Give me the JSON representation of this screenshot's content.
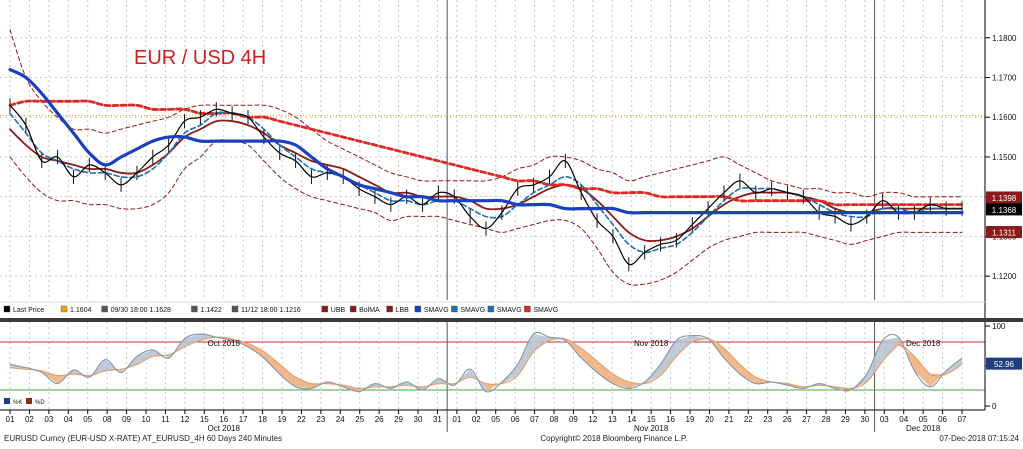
{
  "chart_data": {
    "type": "line",
    "title": "EUR / USD 4H",
    "instrument": "EURUSD Curncy (EUR-USD X-RATE) AT_EURUSD_4H 60 Days 240 Minutes",
    "copyright": "Copyright© 2018 Bloomberg Finance L.P.",
    "timestamp": "07-Dec-2018 07:15:24",
    "price_panel": {
      "ylim": [
        1.115,
        1.188
      ],
      "y_ticks": [
        "1.1200",
        "1.1300",
        "1.1400",
        "1.1500",
        "1.1600",
        "1.1700",
        "1.1800"
      ],
      "horizontal_line": 1.1604,
      "price_tags": [
        {
          "label": "1.1398",
          "value": 1.1398,
          "color": "#8b1a1a"
        },
        {
          "label": "1.1368",
          "value": 1.1368,
          "color": "#000000"
        },
        {
          "label": "1.1311",
          "value": 1.1311,
          "color": "#8b1a1a"
        }
      ],
      "series": [
        {
          "name": "Last Price",
          "color": "#000000",
          "values": [
            1.163,
            1.158,
            1.149,
            1.15,
            1.145,
            1.148,
            1.146,
            1.143,
            1.146,
            1.15,
            1.153,
            1.159,
            1.16,
            1.162,
            1.161,
            1.16,
            1.155,
            1.151,
            1.149,
            1.145,
            1.146,
            1.145,
            1.142,
            1.14,
            1.138,
            1.14,
            1.138,
            1.141,
            1.14,
            1.135,
            1.132,
            1.136,
            1.142,
            1.143,
            1.145,
            1.149,
            1.141,
            1.134,
            1.13,
            1.123,
            1.126,
            1.128,
            1.129,
            1.133,
            1.137,
            1.141,
            1.144,
            1.141,
            1.142,
            1.141,
            1.14,
            1.136,
            1.135,
            1.133,
            1.135,
            1.139,
            1.136,
            1.136,
            1.138,
            1.137,
            1.137
          ]
        },
        {
          "name": "BolMA",
          "color": "#8b1a1a",
          "values": [
            1.157,
            1.153,
            1.15,
            1.149,
            1.148,
            1.147,
            1.147,
            1.146,
            1.146,
            1.148,
            1.151,
            1.155,
            1.157,
            1.159,
            1.159,
            1.158,
            1.156,
            1.153,
            1.151,
            1.149,
            1.148,
            1.147,
            1.145,
            1.143,
            1.141,
            1.141,
            1.14,
            1.14,
            1.14,
            1.139,
            1.137,
            1.137,
            1.138,
            1.14,
            1.142,
            1.143,
            1.142,
            1.139,
            1.135,
            1.131,
            1.129,
            1.129,
            1.13,
            1.132,
            1.135,
            1.138,
            1.14,
            1.141,
            1.141,
            1.141,
            1.14,
            1.139,
            1.137,
            1.136,
            1.136,
            1.137,
            1.137,
            1.137,
            1.137,
            1.137,
            1.137
          ]
        },
        {
          "name": "UBB",
          "color": "#8b1a1a",
          "values": [
            1.182,
            1.17,
            1.164,
            1.16,
            1.157,
            1.157,
            1.156,
            1.157,
            1.158,
            1.159,
            1.16,
            1.162,
            1.163,
            1.163,
            1.163,
            1.163,
            1.163,
            1.162,
            1.16,
            1.157,
            1.154,
            1.152,
            1.15,
            1.148,
            1.146,
            1.145,
            1.144,
            1.144,
            1.144,
            1.144,
            1.144,
            1.145,
            1.147,
            1.148,
            1.15,
            1.15,
            1.149,
            1.147,
            1.146,
            1.144,
            1.145,
            1.146,
            1.147,
            1.148,
            1.149,
            1.15,
            1.148,
            1.146,
            1.144,
            1.143,
            1.142,
            1.142,
            1.141,
            1.141,
            1.14,
            1.141,
            1.141,
            1.14,
            1.14,
            1.14,
            1.14
          ]
        },
        {
          "name": "LBB",
          "color": "#8b1a1a",
          "values": [
            1.15,
            1.145,
            1.141,
            1.139,
            1.139,
            1.138,
            1.138,
            1.137,
            1.137,
            1.138,
            1.141,
            1.147,
            1.15,
            1.154,
            1.154,
            1.153,
            1.149,
            1.145,
            1.142,
            1.14,
            1.139,
            1.138,
            1.137,
            1.136,
            1.134,
            1.135,
            1.135,
            1.135,
            1.134,
            1.133,
            1.132,
            1.131,
            1.132,
            1.133,
            1.134,
            1.134,
            1.132,
            1.127,
            1.121,
            1.118,
            1.118,
            1.119,
            1.121,
            1.124,
            1.127,
            1.129,
            1.13,
            1.131,
            1.131,
            1.131,
            1.131,
            1.13,
            1.129,
            1.128,
            1.129,
            1.13,
            1.131,
            1.131,
            1.131,
            1.131,
            1.131
          ]
        },
        {
          "name": "SMAVG",
          "color": "#1a3fbf",
          "values": [
            1.172,
            1.17,
            1.166,
            1.161,
            1.156,
            1.151,
            1.148,
            1.15,
            1.152,
            1.154,
            1.155,
            1.155,
            1.154,
            1.154,
            1.154,
            1.154,
            1.154,
            1.154,
            1.153,
            1.15,
            1.147,
            1.145,
            1.143,
            1.142,
            1.141,
            1.14,
            1.14,
            1.139,
            1.139,
            1.139,
            1.139,
            1.139,
            1.138,
            1.138,
            1.138,
            1.137,
            1.137,
            1.137,
            1.137,
            1.136,
            1.136,
            1.136,
            1.136,
            1.136,
            1.136,
            1.136,
            1.136,
            1.136,
            1.136,
            1.136,
            1.136,
            1.136,
            1.136,
            1.136,
            1.136,
            1.136,
            1.136,
            1.136,
            1.136,
            1.136,
            1.136
          ]
        },
        {
          "name": "SMAVG",
          "color": "#1f6fb5",
          "values": [
            1.161,
            1.156,
            1.151,
            1.149,
            1.147,
            1.146,
            1.146,
            1.145,
            1.145,
            1.147,
            1.151,
            1.156,
            1.158,
            1.161,
            1.161,
            1.16,
            1.157,
            1.153,
            1.15,
            1.147,
            1.146,
            1.145,
            1.143,
            1.141,
            1.139,
            1.139,
            1.138,
            1.139,
            1.139,
            1.137,
            1.135,
            1.135,
            1.138,
            1.141,
            1.143,
            1.145,
            1.143,
            1.138,
            1.133,
            1.128,
            1.126,
            1.127,
            1.128,
            1.131,
            1.135,
            1.139,
            1.142,
            1.142,
            1.142,
            1.141,
            1.14,
            1.138,
            1.136,
            1.135,
            1.135,
            1.137,
            1.137,
            1.136,
            1.137,
            1.137,
            1.137
          ]
        },
        {
          "name": "SMAVG",
          "color": "#dd2a22",
          "values": [
            1.163,
            1.164,
            1.164,
            1.164,
            1.164,
            1.164,
            1.163,
            1.163,
            1.163,
            1.162,
            1.162,
            1.162,
            1.161,
            1.161,
            1.161,
            1.16,
            1.16,
            1.159,
            1.158,
            1.157,
            1.156,
            1.155,
            1.154,
            1.153,
            1.152,
            1.151,
            1.15,
            1.149,
            1.148,
            1.147,
            1.146,
            1.145,
            1.144,
            1.144,
            1.143,
            1.143,
            1.142,
            1.142,
            1.141,
            1.141,
            1.141,
            1.14,
            1.14,
            1.14,
            1.14,
            1.14,
            1.139,
            1.139,
            1.139,
            1.139,
            1.139,
            1.139,
            1.138,
            1.138,
            1.138,
            1.138,
            1.138,
            1.138,
            1.138,
            1.138,
            1.138
          ]
        }
      ]
    },
    "legend": [
      {
        "label": "Last Price",
        "color": "#000000"
      },
      {
        "label": "1.1604",
        "color": "#f0a000"
      },
      {
        "label": "09/30 18:00 1.1628",
        "color": "#555555"
      },
      {
        "label": "1.1422",
        "color": "#555555"
      },
      {
        "label": "11/12 18:00 1.1216",
        "color": "#555555"
      },
      {
        "label": "UBB",
        "color": "#8b1a1a"
      },
      {
        "label": "BolMA",
        "color": "#8b1a1a"
      },
      {
        "label": "LBB",
        "color": "#8b1a1a"
      },
      {
        "label": "SMAVG",
        "color": "#1a3fbf"
      },
      {
        "label": "SMAVG",
        "color": "#1f6fb5"
      },
      {
        "label": "SMAVG",
        "color": "#1f6fb5"
      },
      {
        "label": "SMAVG",
        "color": "#dd2a22"
      }
    ],
    "oscillator_panel": {
      "ylim": [
        0,
        100
      ],
      "y_ticks": [
        "0",
        "50",
        "100"
      ],
      "upper_line": 80,
      "lower_line": 20,
      "price_tag": {
        "label": "52.96",
        "value": 52.96
      },
      "legend": [
        {
          "label": "%K",
          "color": "#1f3f7f"
        },
        {
          "label": "%D",
          "color": "#8b2a1a"
        }
      ],
      "series": [
        {
          "name": "%K",
          "color": "#8a9aaa",
          "values": [
            52,
            48,
            42,
            28,
            45,
            36,
            58,
            42,
            62,
            70,
            60,
            84,
            90,
            86,
            82,
            74,
            60,
            40,
            24,
            22,
            30,
            24,
            18,
            28,
            22,
            30,
            20,
            34,
            26,
            46,
            18,
            30,
            52,
            90,
            86,
            82,
            60,
            42,
            28,
            22,
            30,
            52,
            82,
            88,
            84,
            60,
            40,
            28,
            30,
            26,
            22,
            28,
            22,
            20,
            40,
            82,
            86,
            44,
            24,
            44,
            60
          ]
        },
        {
          "name": "%D",
          "color": "#e8a070",
          "values": [
            48,
            46,
            44,
            38,
            40,
            38,
            44,
            46,
            52,
            62,
            64,
            74,
            82,
            86,
            84,
            78,
            68,
            52,
            36,
            28,
            28,
            26,
            22,
            24,
            24,
            26,
            24,
            28,
            28,
            36,
            28,
            28,
            38,
            68,
            82,
            84,
            72,
            56,
            40,
            30,
            28,
            38,
            62,
            80,
            84,
            72,
            52,
            36,
            30,
            28,
            24,
            26,
            24,
            22,
            30,
            56,
            76,
            62,
            40,
            40,
            52
          ]
        }
      ]
    },
    "x_axis": {
      "day_labels": [
        "01",
        "02",
        "03",
        "04",
        "05",
        "08",
        "09",
        "10",
        "11",
        "12",
        "15",
        "16",
        "17",
        "18",
        "19",
        "22",
        "23",
        "24",
        "25",
        "26",
        "29",
        "30",
        "31",
        "01",
        "02",
        "05",
        "06",
        "07",
        "08",
        "09",
        "12",
        "13",
        "14",
        "15",
        "16",
        "19",
        "20",
        "21",
        "22",
        "23",
        "26",
        "27",
        "28",
        "29",
        "30",
        "03",
        "04",
        "05",
        "06",
        "07"
      ],
      "month_labels": [
        {
          "label": "Oct 2018",
          "day_index": 11
        },
        {
          "label": "Nov 2018",
          "day_index": 33
        },
        {
          "label": "Dec 2018",
          "day_index": 47
        }
      ],
      "month_separators": [
        23,
        45
      ]
    }
  }
}
